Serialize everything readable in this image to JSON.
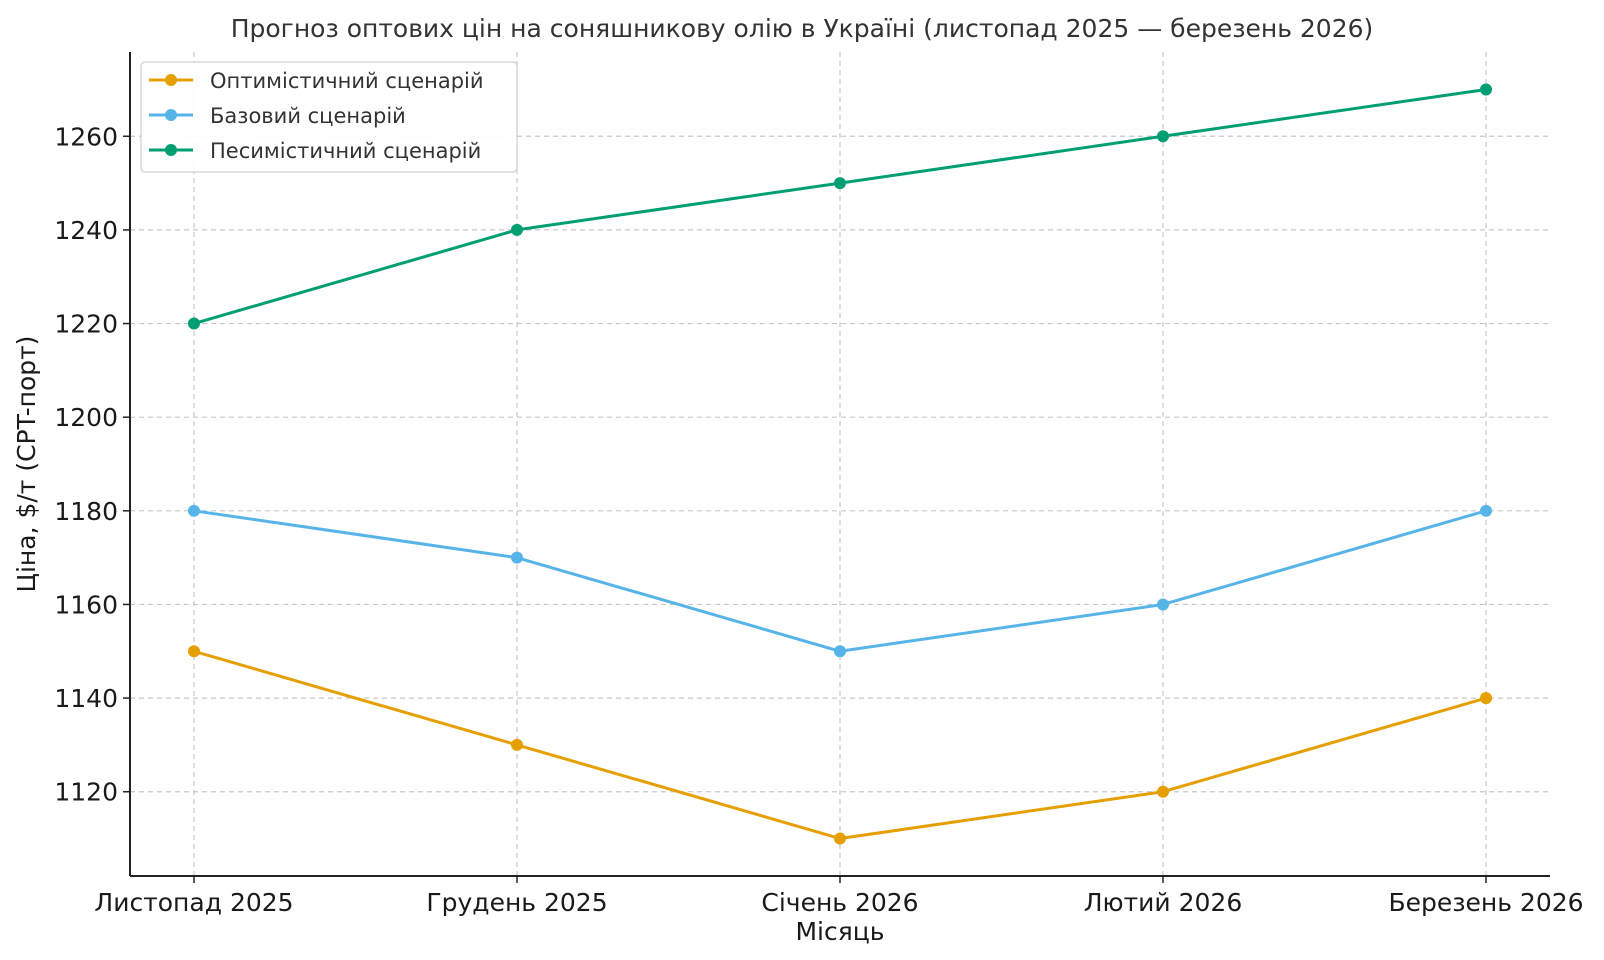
{
  "chart_data": {
    "type": "line",
    "title": "Прогноз оптових цін на соняшникову олію в Україні (листопад 2025 — березень 2026)",
    "xlabel": "Місяць",
    "ylabel": "Ціна, $/т (CPT-порт)",
    "categories": [
      "Листопад 2025",
      "Грудень 2025",
      "Січень 2026",
      "Лютий 2026",
      "Березень 2026"
    ],
    "yticks": [
      1120,
      1140,
      1160,
      1180,
      1200,
      1220,
      1240,
      1260
    ],
    "ylim": [
      1102,
      1278
    ],
    "grid": true,
    "legend_position": "top-left",
    "series": [
      {
        "name": "Оптимістичний сценарій",
        "color": "#e69f00",
        "values": [
          1150,
          1130,
          1110,
          1120,
          1140
        ]
      },
      {
        "name": "Базовий сценарій",
        "color": "#56b4e9",
        "values": [
          1180,
          1170,
          1150,
          1160,
          1180
        ]
      },
      {
        "name": "Песимістичний сценарій",
        "color": "#009e73",
        "values": [
          1220,
          1240,
          1250,
          1260,
          1270
        ]
      }
    ]
  }
}
